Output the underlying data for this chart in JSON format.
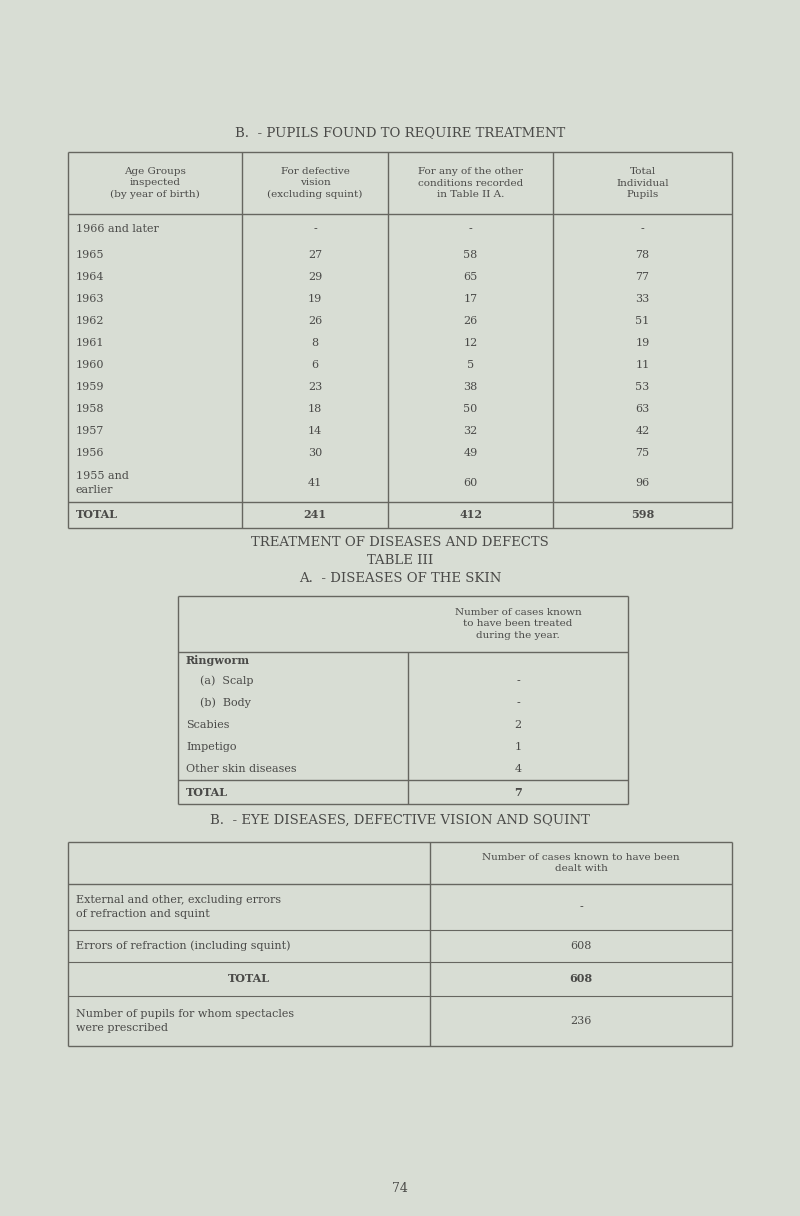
{
  "bg_color": "#d8ddd4",
  "text_color": "#4a4a48",
  "line_color": "#666660",
  "page_number": "74",
  "title_b": "B.  - PUPILS FOUND TO REQUIRE TREATMENT",
  "table1_headers": [
    "Age Groups\ninspected\n(by year of birth)",
    "For defective\nvision\n(excluding squint)",
    "For any of the other\nconditions recorded\nin Table II A.",
    "Total\nIndividual\nPupils"
  ],
  "table1_rows": [
    [
      "1966 and later",
      "-",
      "-",
      "-"
    ],
    [
      "1965",
      "27",
      "58",
      "78"
    ],
    [
      "1964",
      "29",
      "65",
      "77"
    ],
    [
      "1963",
      "19",
      "17",
      "33"
    ],
    [
      "1962",
      "26",
      "26",
      "51"
    ],
    [
      "1961",
      "8",
      "12",
      "19"
    ],
    [
      "1960",
      "6",
      "5",
      "11"
    ],
    [
      "1959",
      "23",
      "38",
      "53"
    ],
    [
      "1958",
      "18",
      "50",
      "63"
    ],
    [
      "1957",
      "14",
      "32",
      "42"
    ],
    [
      "1956",
      "30",
      "49",
      "75"
    ],
    [
      "1955 and\nearlier",
      "41",
      "60",
      "96"
    ],
    [
      "TOTAL",
      "241",
      "412",
      "598"
    ]
  ],
  "treatment_title": "TREATMENT OF DISEASES AND DEFECTS",
  "table_iii_title": "TABLE III",
  "table_a_title": "A.  - DISEASES OF THE SKIN",
  "table2_col_header": "Number of cases known\nto have been treated\nduring the year.",
  "table2_rows": [
    [
      "Ringworm",
      ""
    ],
    [
      "    (a)  Scalp",
      "-"
    ],
    [
      "    (b)  Body",
      "-"
    ],
    [
      "Scabies",
      "2"
    ],
    [
      "Impetigo",
      "1"
    ],
    [
      "Other skin diseases",
      "4"
    ],
    [
      "TOTAL",
      "7"
    ]
  ],
  "table_b_title": "B.  - EYE DISEASES, DEFECTIVE VISION AND SQUINT",
  "table3_col_header": "Number of cases known to have been\ndealt with",
  "table3_rows": [
    [
      "External and other, excluding errors\nof refraction and squint",
      "-"
    ],
    [
      "Errors of refraction (including squint)",
      "608"
    ],
    [
      "TOTAL",
      "608"
    ],
    [
      "Number of pupils for whom spectacles\nwere prescribed",
      "236"
    ]
  ]
}
